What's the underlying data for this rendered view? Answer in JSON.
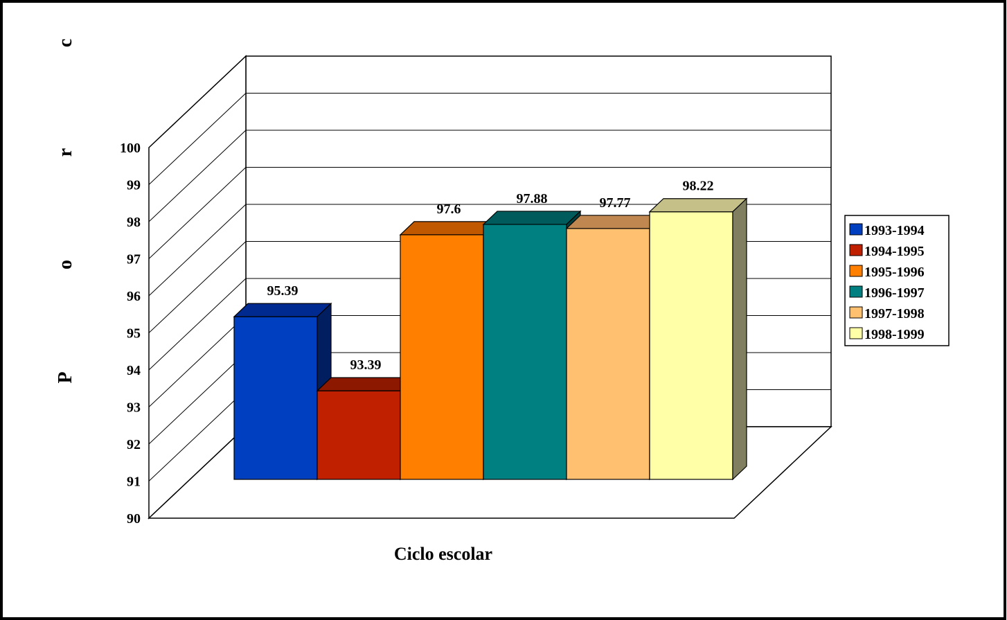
{
  "chart_data": {
    "type": "bar",
    "title": "",
    "xlabel": "Ciclo escolar",
    "ylabel_letters": [
      "P",
      "o",
      "r",
      "c"
    ],
    "ylim": [
      90,
      100
    ],
    "yticks": [
      90,
      91,
      92,
      93,
      94,
      95,
      96,
      97,
      98,
      99,
      100
    ],
    "grid": true,
    "legend_position": "right",
    "series": [
      {
        "name": "1993-1994",
        "value": 95.39,
        "label": "95.39",
        "color": "#0040C0",
        "top_color": "#002A90",
        "side_color": "#001E60"
      },
      {
        "name": "1994-1995",
        "value": 93.39,
        "label": "93.39",
        "color": "#C02000",
        "top_color": "#8C1800",
        "side_color": "#601000"
      },
      {
        "name": "1995-1996",
        "value": 97.6,
        "label": "97.6",
        "color": "#FF8000",
        "top_color": "#C05800",
        "side_color": "#804000"
      },
      {
        "name": "1996-1997",
        "value": 97.88,
        "label": "97.88",
        "color": "#008080",
        "top_color": "#005C5C",
        "side_color": "#004040"
      },
      {
        "name": "1997-1998",
        "value": 97.77,
        "label": "97.77",
        "color": "#FFC070",
        "top_color": "#C08850",
        "side_color": "#806040"
      },
      {
        "name": "1998-1999",
        "value": 98.22,
        "label": "98.22",
        "color": "#FFFFA8",
        "top_color": "#C4C088",
        "side_color": "#808060"
      }
    ]
  }
}
